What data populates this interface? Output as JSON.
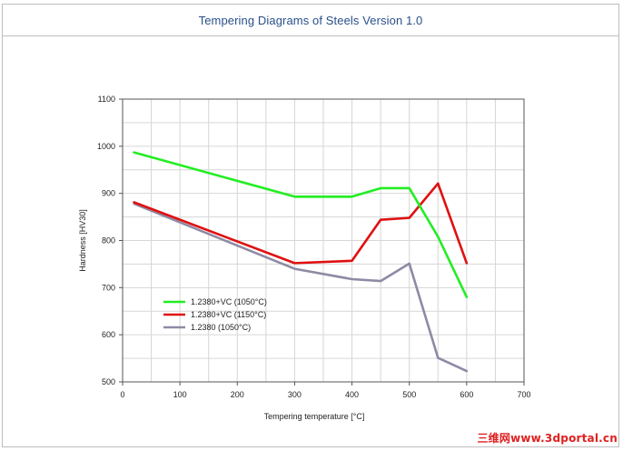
{
  "window": {
    "title": "Tempering Diagrams of Steels Version 1.0"
  },
  "watermark": "三维网www.3dportal.cn",
  "chart_data": {
    "type": "line",
    "title": "",
    "xlabel": "Tempering temperature [°C]",
    "ylabel": "Hardness [HV30]",
    "xlim": [
      0,
      700
    ],
    "ylim": [
      500,
      1100
    ],
    "x_ticks": [
      0,
      100,
      200,
      300,
      400,
      500,
      600,
      700
    ],
    "y_ticks": [
      500,
      600,
      700,
      800,
      900,
      1000,
      1100
    ],
    "grid": true,
    "legend_position": "bottom-left",
    "series": [
      {
        "name": "1.2380+VC (1050°C)",
        "color": "#22ee22",
        "x": [
          20,
          300,
          400,
          450,
          500,
          550,
          600
        ],
        "y": [
          987,
          893,
          893,
          911,
          911,
          808,
          680
        ]
      },
      {
        "name": "1.2380+VC (1150°C)",
        "color": "#e01010",
        "x": [
          20,
          300,
          400,
          450,
          500,
          550,
          600
        ],
        "y": [
          881,
          752,
          757,
          844,
          848,
          921,
          752
        ]
      },
      {
        "name": "1.2380 (1050°C)",
        "color": "#8e8aa4",
        "x": [
          20,
          300,
          400,
          450,
          500,
          550,
          600
        ],
        "y": [
          878,
          740,
          718,
          714,
          751,
          551,
          523
        ]
      }
    ]
  }
}
